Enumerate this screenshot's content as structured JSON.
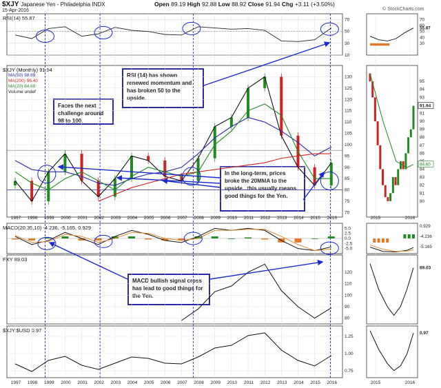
{
  "header": {
    "symbol": "$XJY",
    "name": "Japanese Yen - Philadelphia INDX",
    "date": "15-Apr-2016",
    "open_label": "Open",
    "open": "89.19",
    "high_label": "High",
    "high": "92.88",
    "low_label": "Low",
    "low": "88.92",
    "close_label": "Close",
    "close": "91.94",
    "chg_label": "Chg",
    "chg": "+3.11 (+3.50%)",
    "watermark": "© StockCharts.com"
  },
  "panels": {
    "rsi_label": "RSI(14) 55.87",
    "price_label": "$XJY (Monthly) 91.94",
    "legend": [
      "MA(50) 98.89",
      "MA(200) 96.40",
      "MA(20) 84.60",
      "Volume undef"
    ],
    "macd_label": "MACD(20,35,10) -4.236, -5.165, 0.929",
    "fxy_label": "FXY 89.03",
    "ratio_label": "$XJY:$USD 0.97"
  },
  "annotations": {
    "rsi_note": "RSI (14) has shown renewed momentum and has broken 50 to the upside.",
    "next_note": "Faces the next challenge around 98 to 100.",
    "longterm_note": "In the long-term, prices broke the 20MMA to the upside...this usually means good things for the Yen.",
    "macd_note": "MACD bullish signal cross has lead to good things for the Yen."
  },
  "colors": {
    "ma50": "#2a2aa8",
    "ma200": "#d42020",
    "ma20": "#1f8a1f",
    "up": "#1f8a1f",
    "down": "#cc2222",
    "arrow": "#1a2ad0",
    "hist": "#e07a2a"
  },
  "chart_data": [
    {
      "type": "line",
      "title": "RSI(14) 55.87",
      "x": [
        1997,
        1998,
        1999,
        2000,
        2001,
        2002,
        2003,
        2004,
        2005,
        2006,
        2007,
        2008,
        2009,
        2010,
        2011,
        2012,
        2013,
        2014,
        2015,
        2016
      ],
      "series": [
        {
          "name": "RSI(14)",
          "values": [
            44,
            38,
            55,
            58,
            42,
            46,
            57,
            52,
            50,
            45,
            44,
            58,
            56,
            54,
            55,
            52,
            34,
            33,
            36,
            56
          ]
        }
      ],
      "ylim": [
        10,
        80
      ],
      "yticks": [
        "70",
        "50",
        "30",
        "10"
      ]
    },
    {
      "type": "line",
      "title": "$XJY (Monthly) 91.94",
      "x": [
        1997,
        1998,
        1999,
        2000,
        2001,
        2002,
        2003,
        2004,
        2005,
        2006,
        2007,
        2008,
        2009,
        2010,
        2011,
        2012,
        2013,
        2014,
        2015,
        2016
      ],
      "series": [
        {
          "name": "$XJY",
          "values": [
            84,
            75,
            88,
            96,
            84,
            77,
            85,
            95,
            93,
            86,
            84,
            94,
            108,
            112,
            125,
            130,
            104,
            90,
            82,
            92
          ]
        },
        {
          "name": "MA(50)",
          "values": [
            93,
            89,
            88,
            88,
            86,
            83,
            82,
            85,
            87,
            88,
            90,
            96,
            103,
            108,
            112,
            110,
            106,
            101,
            95,
            99
          ]
        },
        {
          "name": "MA(200)",
          "values": [
            null,
            null,
            null,
            null,
            null,
            75,
            78,
            81,
            83,
            85,
            87,
            88,
            89,
            90,
            91,
            92,
            94,
            95,
            96,
            96
          ]
        },
        {
          "name": "MA(20)",
          "values": [
            88,
            83,
            80,
            85,
            88,
            84,
            80,
            86,
            90,
            88,
            86,
            88,
            100,
            106,
            115,
            118,
            113,
            97,
            85,
            85
          ]
        }
      ],
      "ylim": [
        68,
        135
      ],
      "yticks": [
        "130",
        "125",
        "120",
        "115",
        "110",
        "105",
        "100",
        "95",
        "90",
        "85",
        "80",
        "75",
        "70"
      ]
    },
    {
      "type": "line",
      "title": "MACD(20,35,10) -4.236, -5.165, 0.929",
      "x": [
        1997,
        1998,
        1999,
        2000,
        2001,
        2002,
        2003,
        2004,
        2005,
        2006,
        2007,
        2008,
        2009,
        2010,
        2011,
        2012,
        2013,
        2014,
        2015,
        2016
      ],
      "series": [
        {
          "name": "MACD",
          "values": [
            1,
            -3,
            -1,
            3,
            0,
            -3,
            1,
            4,
            2,
            -1,
            -2,
            1,
            5,
            4,
            5,
            4,
            -1,
            -5,
            -6,
            -4.2
          ]
        },
        {
          "name": "Signal",
          "values": [
            1.5,
            -2,
            -1.5,
            2,
            1,
            -2,
            0,
            3,
            2.5,
            0,
            -1,
            0,
            4,
            4,
            4.5,
            4.5,
            1,
            -3,
            -6,
            -5.2
          ]
        }
      ],
      "ylim": [
        -7.5,
        7.5
      ],
      "yticks": [
        "5.0",
        "2.5",
        "0.0",
        "-2.5",
        "-5.0"
      ]
    },
    {
      "type": "line",
      "title": "FXY 89.03",
      "x": [
        2007,
        2008,
        2009,
        2010,
        2011,
        2012,
        2013,
        2014,
        2015,
        2016
      ],
      "series": [
        {
          "name": "FXY",
          "values": [
            78,
            88,
            103,
            108,
            120,
            127,
            104,
            90,
            80,
            89
          ]
        }
      ],
      "ylim": [
        75,
        135
      ],
      "yticks": [
        "120",
        "110",
        "100",
        "90",
        "80"
      ]
    },
    {
      "type": "line",
      "title": "$XJY:$USD 0.97",
      "x": [
        1997,
        1998,
        1999,
        2000,
        2001,
        2002,
        2003,
        2004,
        2005,
        2006,
        2007,
        2008,
        2009,
        2010,
        2011,
        2012,
        2013,
        2014,
        2015,
        2016
      ],
      "series": [
        {
          "name": "$XJY:$USD",
          "values": [
            0.85,
            0.74,
            0.9,
            0.96,
            0.83,
            0.77,
            0.86,
            0.95,
            0.93,
            0.86,
            0.85,
            0.95,
            1.08,
            1.12,
            1.26,
            1.3,
            1.05,
            0.9,
            0.82,
            0.97
          ]
        }
      ],
      "ylim": [
        0.65,
        1.4
      ],
      "yticks": [
        "1.25",
        "1.00",
        "0.75"
      ]
    }
  ],
  "axis": {
    "years": [
      "1997",
      "1998",
      "1999",
      "2000",
      "2001",
      "2002",
      "2003",
      "2004",
      "2005",
      "2006",
      "2007",
      "2008",
      "2009",
      "2010",
      "2011",
      "2012",
      "2013",
      "2014",
      "2015",
      "2016"
    ],
    "side_years": [
      "2015",
      "2016"
    ],
    "side_rsi_ticks": [
      "70",
      "60",
      "55.87",
      "50",
      "40",
      "30"
    ],
    "side_price_ticks": [
      "95",
      "94",
      "93",
      "92",
      "91",
      "90",
      "89",
      "88",
      "87",
      "86",
      "85",
      "84",
      "83",
      "82",
      "81",
      "80"
    ],
    "side_price_last": "91.94",
    "side_price_ma": "84.60",
    "side_macd_ticks": [
      "0.929",
      "-4.236",
      "-5.165"
    ],
    "side_fxy_ticks": [
      "89.03"
    ],
    "side_ratio_ticks": [
      "0.97"
    ]
  }
}
